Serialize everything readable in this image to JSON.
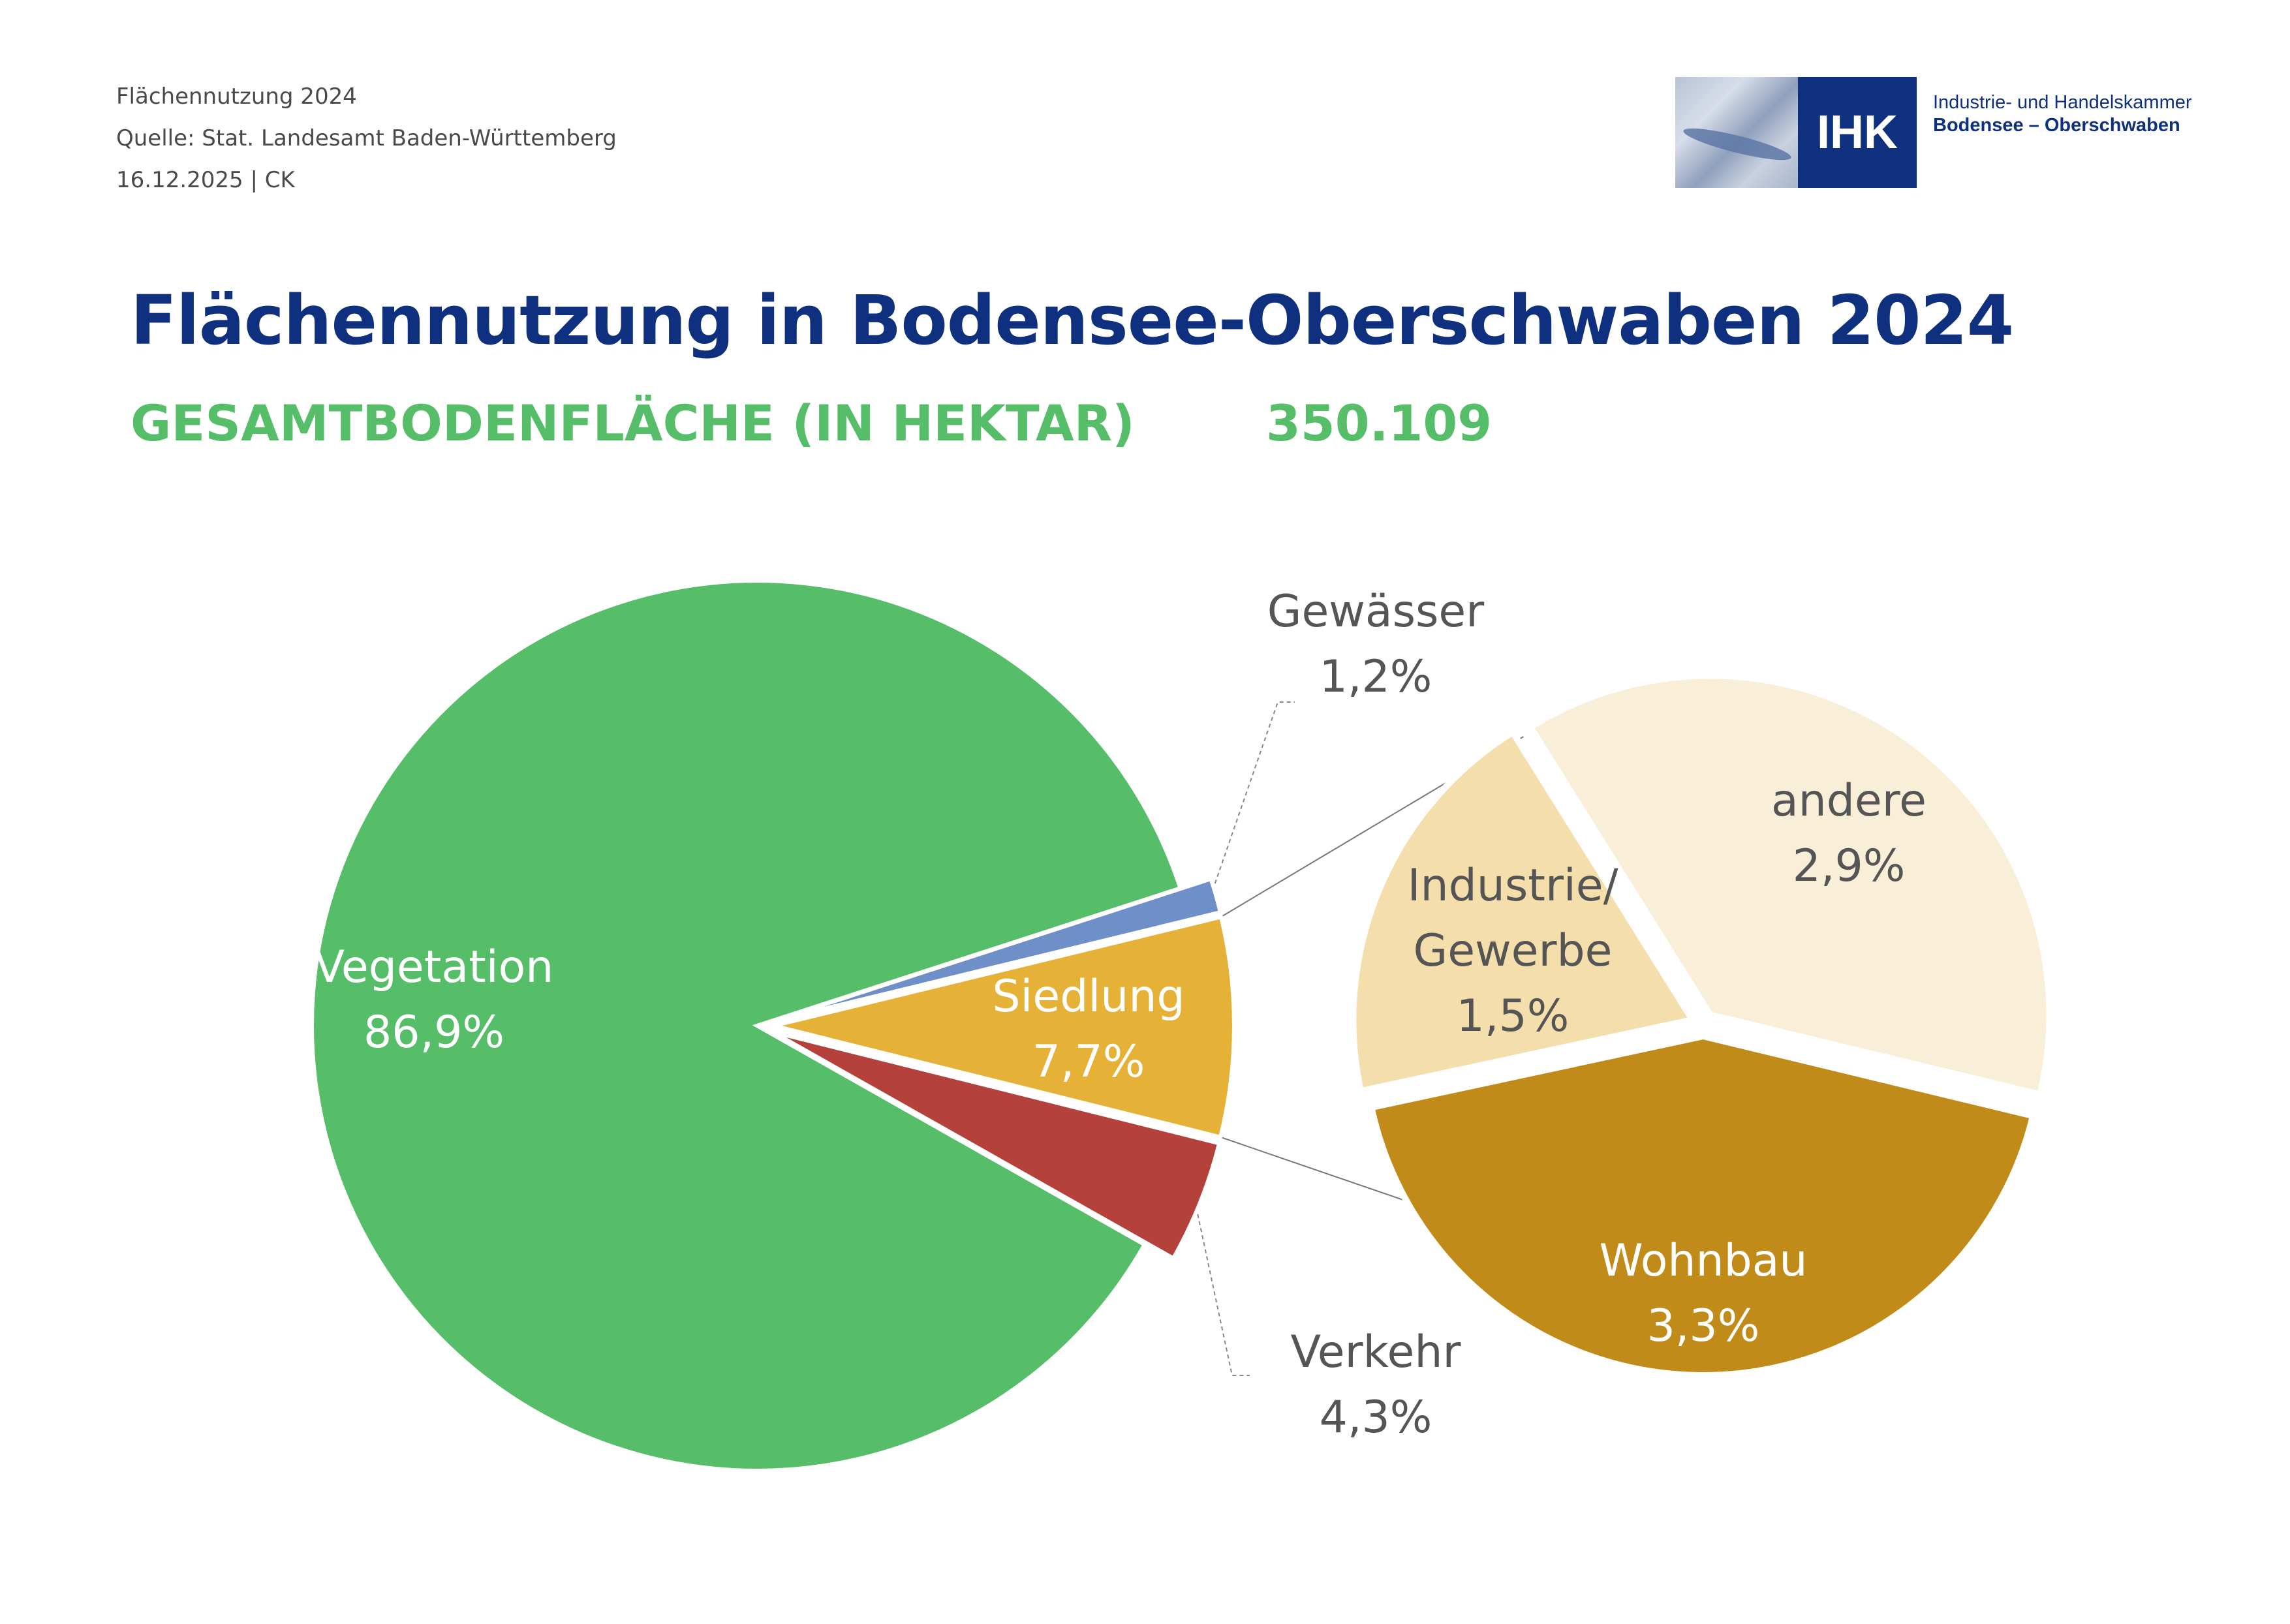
{
  "header": {
    "line1": "Flächennutzung 2024",
    "line2": "Quelle: Stat. Landesamt Baden-Württemberg",
    "line3": "16.12.2025 | CK"
  },
  "logo": {
    "mark": "IHK",
    "line1": "Industrie- und Handelskammer",
    "line2": "Bodensee – Oberschwaben"
  },
  "title": "Flächennutzung in Bodensee-Oberschwaben 2024",
  "subtitle": "GESAMTBODENFLÄCHE (IN HEKTAR)",
  "total_value": "350.109",
  "chart_data": [
    {
      "type": "pie",
      "title": "",
      "slices": [
        {
          "name": "Vegetation",
          "value": 86.9,
          "label": "86,9%",
          "color": "#56be68"
        },
        {
          "name": "Gewässer",
          "value": 1.2,
          "label": "1,2%",
          "color": "#6f8fc9"
        },
        {
          "name": "Siedlung",
          "value": 7.7,
          "label": "7,7%",
          "color": "#e5b237"
        },
        {
          "name": "Verkehr",
          "value": 4.3,
          "label": "4,3%",
          "color": "#b5423a"
        }
      ]
    },
    {
      "type": "pie",
      "title": "",
      "breakdown_of": "Siedlung",
      "slices": [
        {
          "name": "andere",
          "value": 2.9,
          "label": "2,9%",
          "color": "#f9eed8"
        },
        {
          "name": "Wohnbau",
          "value": 3.3,
          "label": "3,3%",
          "color": "#c08b18"
        },
        {
          "name": "Industrie/ Gewerbe",
          "value": 1.5,
          "label": "1,5%",
          "color": "#f4deab"
        }
      ]
    }
  ]
}
